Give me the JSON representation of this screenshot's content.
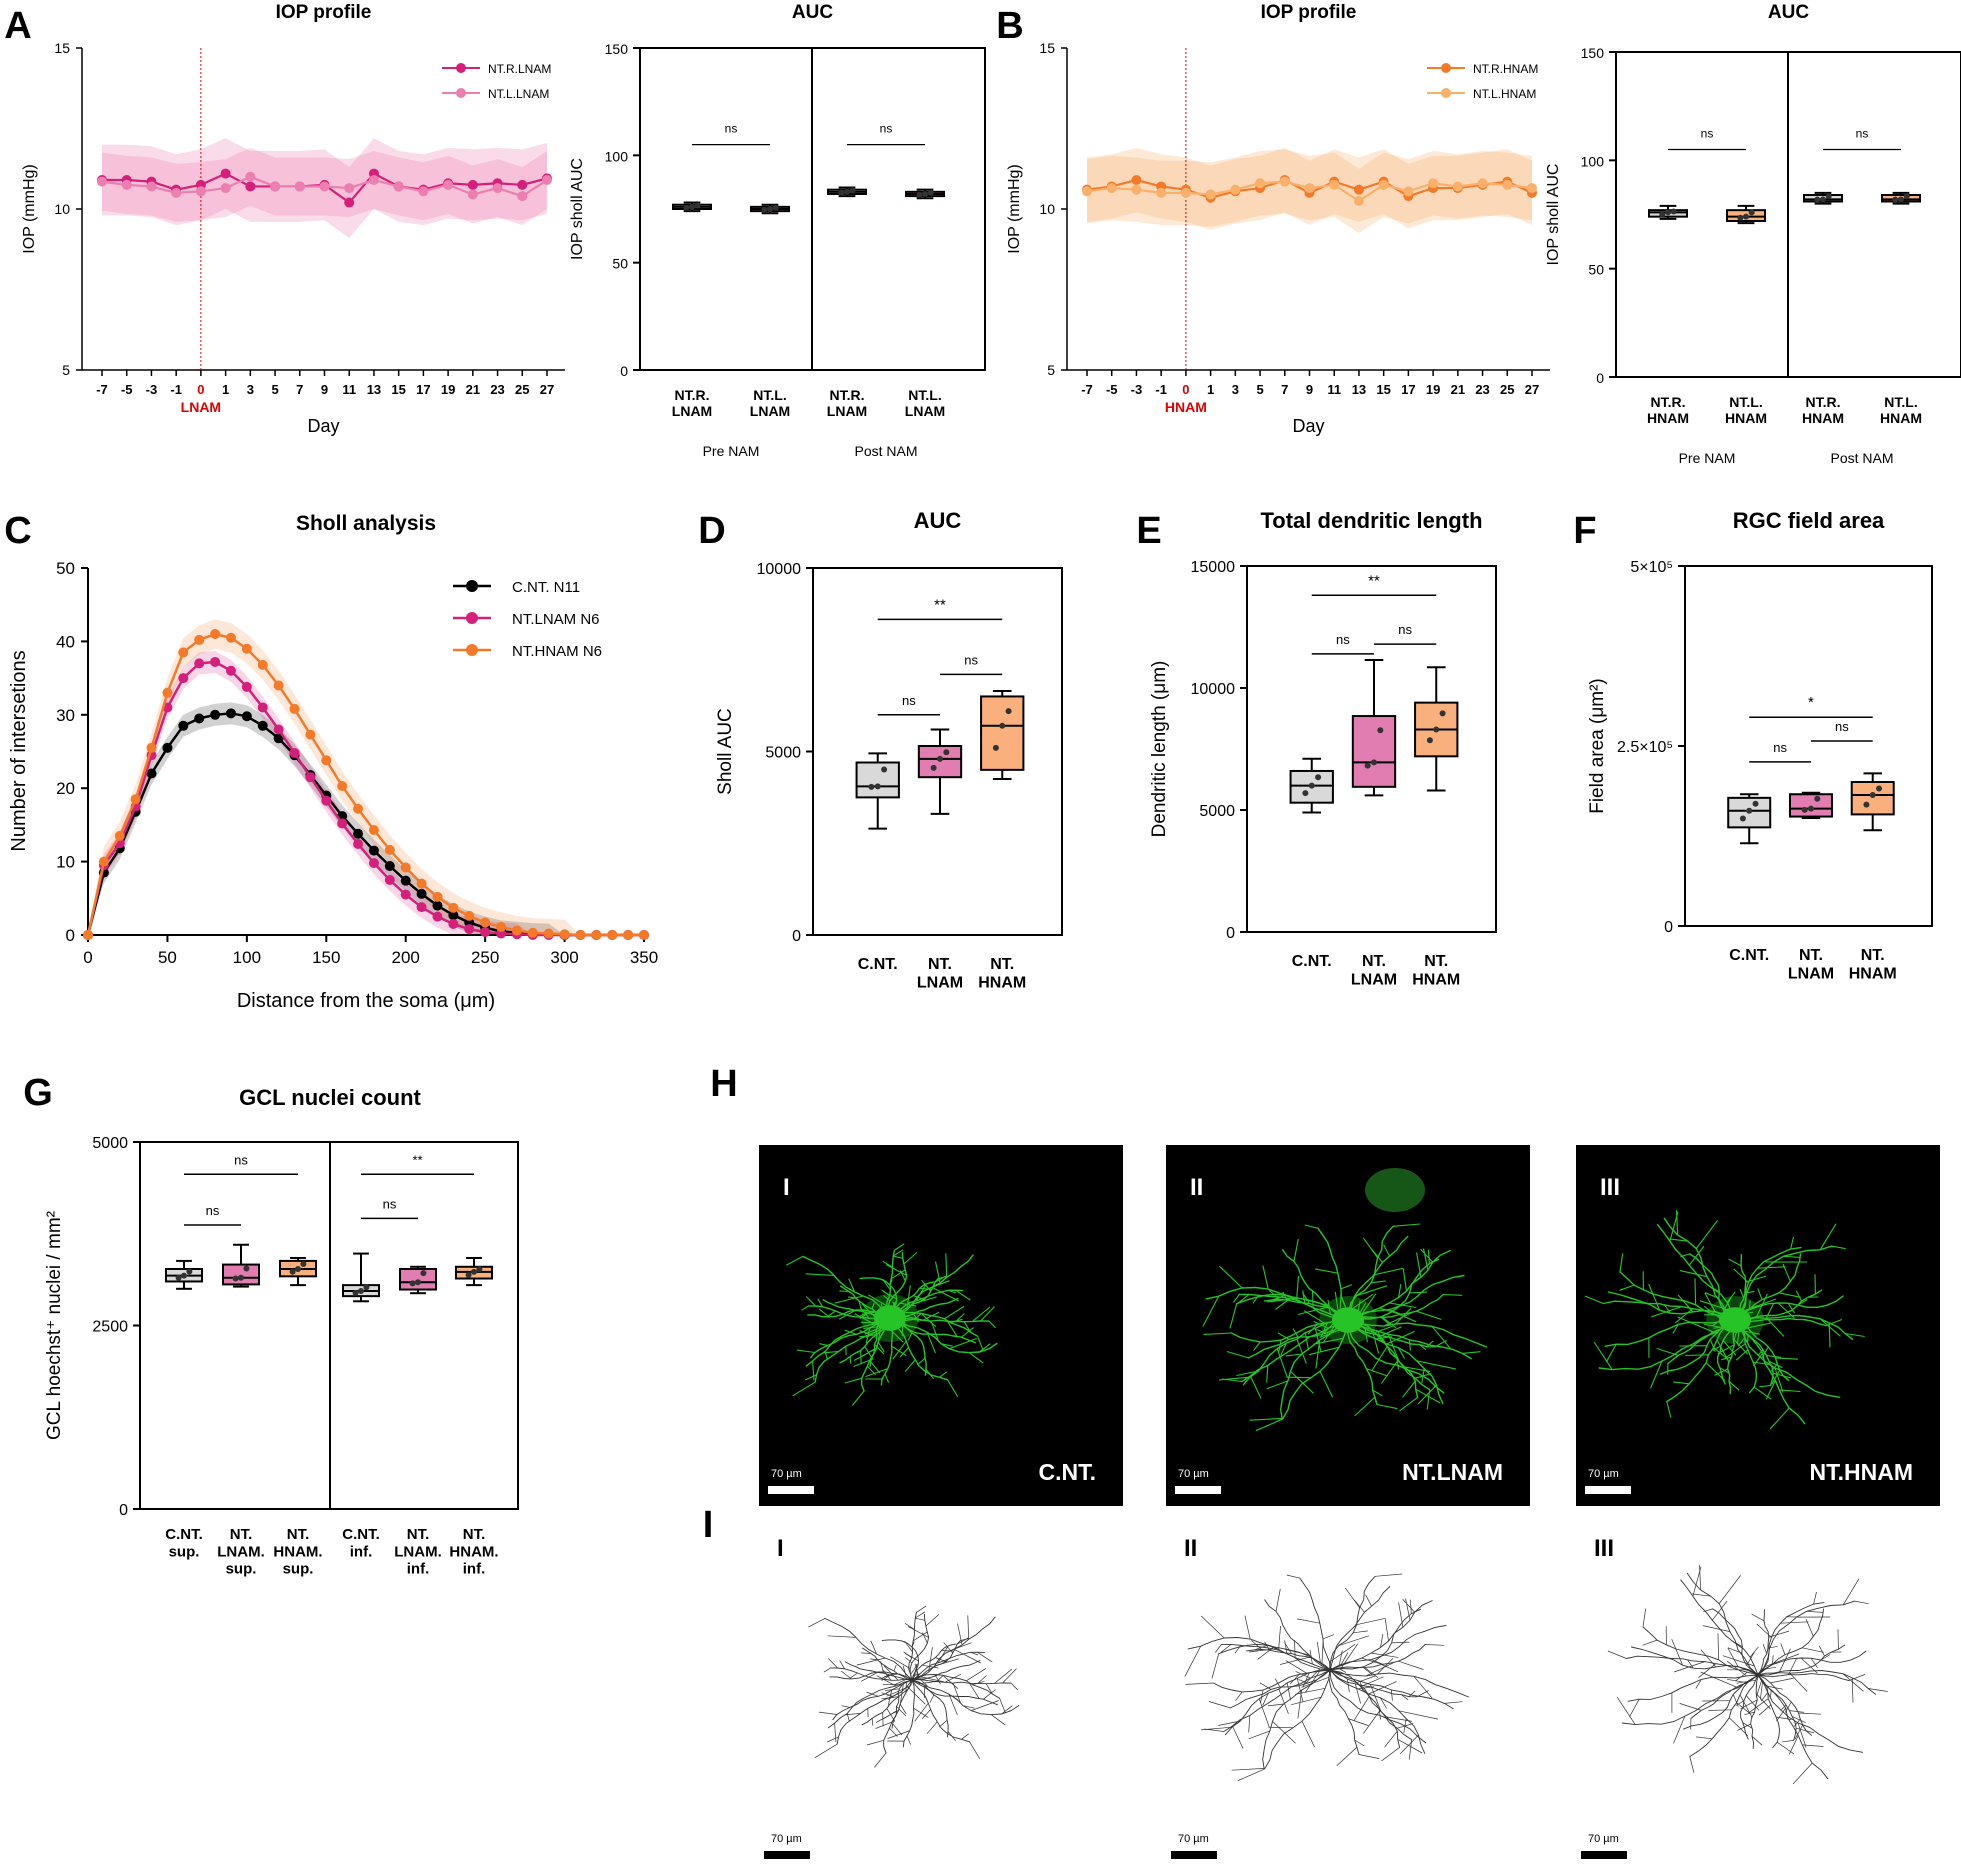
{
  "panels": {
    "A": {
      "letter": "A",
      "iop": {
        "title": "IOP profile",
        "ylabel": "IOP (mmHg)",
        "xlabel": "Day",
        "yticks": [
          "5",
          "10",
          "15"
        ],
        "xticks": [
          "-7",
          "-5",
          "-3",
          "-1",
          "0",
          "1",
          "3",
          "5",
          "7",
          "9",
          "11",
          "13",
          "15",
          "17",
          "19",
          "21",
          "23",
          "25",
          "27"
        ],
        "event_label": "LNAM",
        "legend": [
          "NT.R.LNAM",
          "NT.L.LNAM"
        ]
      },
      "auc": {
        "title": "AUC",
        "ylabel": "IOP sholl AUC",
        "yticks": [
          "0",
          "50",
          "100",
          "150"
        ],
        "groups": [
          "NT.R.\nLNAM",
          "NT.L.\nLNAM",
          "NT.R.\nLNAM",
          "NT.L.\nLNAM"
        ],
        "sections": [
          "Pre NAM",
          "Post NAM"
        ],
        "sig": [
          "ns",
          "ns"
        ]
      }
    },
    "B": {
      "letter": "B",
      "iop": {
        "title": "IOP profile",
        "ylabel": "IOP (mmHg)",
        "xlabel": "Day",
        "yticks": [
          "5",
          "10",
          "15"
        ],
        "xticks": [
          "-7",
          "-5",
          "-3",
          "-1",
          "0",
          "1",
          "3",
          "5",
          "7",
          "9",
          "11",
          "13",
          "15",
          "17",
          "19",
          "21",
          "23",
          "25",
          "27"
        ],
        "event_label": "HNAM",
        "legend": [
          "NT.R.HNAM",
          "NT.L.HNAM"
        ]
      },
      "auc": {
        "title": "AUC",
        "ylabel": "IOP sholl AUC",
        "yticks": [
          "0",
          "50",
          "100",
          "150"
        ],
        "groups": [
          "NT.R.\nHNAM",
          "NT.L.\nHNAM",
          "NT.R.\nHNAM",
          "NT.L.\nHNAM"
        ],
        "sections": [
          "Pre NAM",
          "Post NAM"
        ],
        "sig": [
          "ns",
          "ns"
        ]
      }
    },
    "C": {
      "letter": "C",
      "title": "Sholl analysis",
      "xlabel": "Distance from the soma (μm)",
      "ylabel": "Number of intersetions",
      "xticks": [
        "0",
        "50",
        "100",
        "150",
        "200",
        "250",
        "300",
        "350"
      ],
      "yticks": [
        "0",
        "10",
        "20",
        "30",
        "40",
        "50"
      ],
      "legend": [
        "C.NT. N11",
        "NT.LNAM N6",
        "NT.HNAM N6"
      ]
    },
    "D": {
      "letter": "D",
      "title": "AUC",
      "ylabel": "Sholl AUC",
      "yticks": [
        "0",
        "5000",
        "10000"
      ],
      "groups": [
        "C.NT.",
        "NT.\nLNAM",
        "NT.\nHNAM"
      ],
      "sig": [
        "**",
        "ns",
        "ns"
      ]
    },
    "E": {
      "letter": "E",
      "title": "Total dendritic length",
      "ylabel": "Dendritic length (μm)",
      "yticks": [
        "0",
        "5000",
        "10000",
        "15000"
      ],
      "groups": [
        "C.NT.",
        "NT.\nLNAM",
        "NT.\nHNAM"
      ],
      "sig": [
        "**",
        "ns",
        "ns"
      ]
    },
    "F": {
      "letter": "F",
      "title": "RGC field area",
      "ylabel": "Field area (μm²)",
      "yticks": [
        "0",
        "2.5×10⁵",
        "5×10⁵"
      ],
      "groups": [
        "C.NT.",
        "NT.\nLNAM",
        "NT.\nHNAM"
      ],
      "sig": [
        "*",
        "ns",
        "ns"
      ]
    },
    "G": {
      "letter": "G",
      "title": "GCL nuclei count",
      "ylabel": "GCL hoechst⁺ nuclei / mm²",
      "yticks": [
        "0",
        "2500",
        "5000"
      ],
      "groups": [
        "C.NT.\nsup.",
        "NT.\nLNAM.\nsup.",
        "NT.\nHNAM.\nsup.",
        "C.NT.\ninf.",
        "NT.\nLNAM.\ninf.",
        "NT.\nHNAM.\ninf."
      ],
      "sig": [
        "ns",
        "ns",
        "**",
        "ns"
      ]
    },
    "H": {
      "letter": "H",
      "images": [
        {
          "roman": "I",
          "label": "C.NT.",
          "scale": "70 µm"
        },
        {
          "roman": "II",
          "label": "NT.LNAM",
          "scale": "70 µm"
        },
        {
          "roman": "III",
          "label": "NT.HNAM",
          "scale": "70 µm"
        }
      ]
    },
    "I": {
      "letter": "I",
      "images": [
        {
          "roman": "I",
          "scale": "70 µm"
        },
        {
          "roman": "II",
          "scale": "70 µm"
        },
        {
          "roman": "III",
          "scale": "70 µm"
        }
      ]
    }
  },
  "colors": {
    "cnt": "#000000",
    "lnam": "#d4207a",
    "lnam_light": "#ec7fb0",
    "hnam": "#f47a2a",
    "hnam_light": "#f9b06a",
    "lnam_box": "#e27db1",
    "hnam_box": "#f9b07d",
    "cnt_box": "#d9d9d9",
    "event": "#e00000"
  },
  "chart_data": [
    {
      "panel": "A",
      "type": "line",
      "title": "IOP profile",
      "xlabel": "Day",
      "ylabel": "IOP (mmHg)",
      "ylim": [
        5,
        15
      ],
      "x": [
        -7,
        -5,
        -3,
        -1,
        0,
        1,
        3,
        5,
        7,
        9,
        11,
        13,
        15,
        17,
        19,
        21,
        23,
        25,
        27
      ],
      "series": [
        {
          "name": "NT.R.LNAM",
          "values": [
            10.9,
            10.9,
            10.85,
            10.6,
            10.75,
            11.1,
            10.7,
            10.7,
            10.7,
            10.75,
            10.2,
            11.1,
            10.7,
            10.6,
            10.8,
            10.75,
            10.8,
            10.75,
            10.95
          ],
          "sd": 1.1
        },
        {
          "name": "NT.L.LNAM",
          "values": [
            10.85,
            10.75,
            10.7,
            10.5,
            10.55,
            10.65,
            11.0,
            10.7,
            10.7,
            10.7,
            10.65,
            10.9,
            10.7,
            10.55,
            10.75,
            10.45,
            10.65,
            10.4,
            10.9
          ],
          "sd": 0.9
        }
      ]
    },
    {
      "panel": "A",
      "type": "box",
      "title": "AUC",
      "ylabel": "IOP sholl AUC",
      "ylim": [
        0,
        150
      ],
      "categories": [
        "NT.R. LNAM (Pre NAM)",
        "NT.L. LNAM (Pre NAM)",
        "NT.R. LNAM (Post NAM)",
        "NT.L. LNAM (Post NAM)"
      ],
      "boxes": [
        {
          "min": 74,
          "q1": 75,
          "median": 76,
          "q3": 77,
          "max": 78
        },
        {
          "min": 73,
          "q1": 74,
          "median": 75,
          "q3": 76,
          "max": 77
        },
        {
          "min": 81,
          "q1": 82,
          "median": 83,
          "q3": 84,
          "max": 85
        },
        {
          "min": 80,
          "q1": 81,
          "median": 82,
          "q3": 83,
          "max": 84
        }
      ]
    },
    {
      "panel": "B",
      "type": "line",
      "title": "IOP profile",
      "xlabel": "Day",
      "ylabel": "IOP (mmHg)",
      "ylim": [
        5,
        15
      ],
      "x": [
        -7,
        -5,
        -3,
        -1,
        0,
        1,
        3,
        5,
        7,
        9,
        11,
        13,
        15,
        17,
        19,
        21,
        23,
        25,
        27
      ],
      "series": [
        {
          "name": "NT.R.HNAM",
          "values": [
            10.6,
            10.7,
            10.9,
            10.7,
            10.6,
            10.35,
            10.55,
            10.65,
            10.9,
            10.5,
            10.85,
            10.6,
            10.85,
            10.4,
            10.65,
            10.65,
            10.75,
            10.85,
            10.5
          ],
          "sd": 1.0
        },
        {
          "name": "NT.L.HNAM",
          "values": [
            10.55,
            10.65,
            10.6,
            10.5,
            10.5,
            10.45,
            10.6,
            10.8,
            10.85,
            10.65,
            10.75,
            10.25,
            10.75,
            10.55,
            10.8,
            10.7,
            10.8,
            10.75,
            10.65
          ],
          "sd": 1.0
        }
      ]
    },
    {
      "panel": "B",
      "type": "box",
      "title": "AUC",
      "ylabel": "IOP sholl AUC",
      "ylim": [
        0,
        150
      ],
      "categories": [
        "NT.R. HNAM (Pre NAM)",
        "NT.L. HNAM (Pre NAM)",
        "NT.R. HNAM (Post NAM)",
        "NT.L. HNAM (Post NAM)"
      ],
      "boxes": [
        {
          "min": 73,
          "q1": 74,
          "median": 76,
          "q3": 77,
          "max": 79
        },
        {
          "min": 71,
          "q1": 72,
          "median": 74,
          "q3": 77,
          "max": 79
        },
        {
          "min": 80,
          "q1": 81,
          "median": 82,
          "q3": 84,
          "max": 85
        },
        {
          "min": 80,
          "q1": 81,
          "median": 82,
          "q3": 84,
          "max": 85
        }
      ]
    },
    {
      "panel": "C",
      "type": "line",
      "title": "Sholl analysis",
      "xlabel": "Distance from the soma (μm)",
      "ylabel": "Number of intersetions",
      "xlim": [
        0,
        350
      ],
      "ylim": [
        0,
        50
      ],
      "x": [
        0,
        10,
        20,
        30,
        40,
        50,
        60,
        70,
        80,
        90,
        100,
        110,
        120,
        130,
        140,
        150,
        160,
        170,
        180,
        190,
        200,
        210,
        220,
        230,
        240,
        250,
        260,
        270,
        280,
        290,
        300,
        310,
        320,
        330,
        340,
        350
      ],
      "series": [
        {
          "name": "C.NT. N11",
          "values": [
            0,
            8.5,
            11.8,
            16.8,
            22.0,
            25.5,
            28.5,
            29.5,
            30.0,
            30.2,
            29.8,
            28.5,
            26.8,
            24.5,
            21.8,
            19.0,
            16.2,
            13.8,
            11.5,
            9.4,
            7.4,
            5.6,
            4.0,
            2.7,
            1.7,
            1.0,
            0.5,
            0.3,
            0.1,
            0.05,
            0,
            0,
            0,
            0,
            0,
            0
          ],
          "sd": 1.5
        },
        {
          "name": "NT.LNAM N6",
          "values": [
            0,
            9.5,
            12.5,
            17.5,
            24.5,
            31.0,
            35.0,
            37.0,
            37.2,
            36.0,
            33.8,
            31.0,
            28.0,
            24.8,
            21.5,
            18.3,
            15.2,
            12.4,
            9.8,
            7.5,
            5.5,
            3.8,
            2.5,
            1.5,
            0.8,
            0.4,
            0.2,
            0.1,
            0,
            0,
            0,
            0,
            0,
            0,
            0,
            0
          ],
          "sd": 1.5
        },
        {
          "name": "NT.HNAM N6",
          "values": [
            0,
            10.0,
            13.5,
            18.5,
            25.5,
            33.0,
            38.5,
            40.2,
            41.0,
            40.5,
            39.0,
            36.8,
            34.0,
            30.8,
            27.3,
            23.8,
            20.3,
            17.2,
            14.3,
            11.6,
            9.2,
            7.0,
            5.2,
            3.7,
            2.6,
            1.7,
            1.1,
            0.6,
            0.3,
            0.2,
            0.1,
            0,
            0,
            0,
            0,
            0
          ],
          "sd": 2.0
        }
      ]
    },
    {
      "panel": "D",
      "type": "box",
      "title": "AUC",
      "ylabel": "Sholl AUC",
      "ylim": [
        0,
        10000
      ],
      "categories": [
        "C.NT.",
        "NT. LNAM",
        "NT. HNAM"
      ],
      "boxes": [
        {
          "min": 2900,
          "q1": 3750,
          "median": 4050,
          "q3": 4700,
          "max": 4950
        },
        {
          "min": 3300,
          "q1": 4300,
          "median": 4800,
          "q3": 5150,
          "max": 5600
        },
        {
          "min": 4250,
          "q1": 4500,
          "median": 5700,
          "q3": 6500,
          "max": 6650
        }
      ]
    },
    {
      "panel": "E",
      "type": "box",
      "title": "Total dendritic length",
      "ylabel": "Dendritic length (μm)",
      "ylim": [
        0,
        15000
      ],
      "categories": [
        "C.NT.",
        "NT. LNAM",
        "NT. HNAM"
      ],
      "boxes": [
        {
          "min": 4900,
          "q1": 5300,
          "median": 6000,
          "q3": 6600,
          "max": 7100
        },
        {
          "min": 5600,
          "q1": 5950,
          "median": 6950,
          "q3": 8850,
          "max": 11150
        },
        {
          "min": 5800,
          "q1": 7200,
          "median": 8300,
          "q3": 9400,
          "max": 10850
        }
      ]
    },
    {
      "panel": "F",
      "type": "box",
      "title": "RGC field area",
      "ylabel": "Field area (μm²)",
      "ylim": [
        0,
        500000
      ],
      "categories": [
        "C.NT.",
        "NT. LNAM",
        "NT. HNAM"
      ],
      "boxes": [
        {
          "min": 115000,
          "q1": 137000,
          "median": 160000,
          "q3": 178000,
          "max": 183000
        },
        {
          "min": 150000,
          "q1": 152000,
          "median": 163000,
          "q3": 183000,
          "max": 185000
        },
        {
          "min": 133000,
          "q1": 155000,
          "median": 182000,
          "q3": 200000,
          "max": 212000
        }
      ]
    },
    {
      "panel": "G",
      "type": "box",
      "title": "GCL nuclei count",
      "ylabel": "GCL hoechst⁺ nuclei / mm²",
      "ylim": [
        0,
        5000
      ],
      "categories": [
        "C.NT. sup.",
        "NT. LNAM. sup.",
        "NT. HNAM. sup.",
        "C.NT. inf.",
        "NT. LNAM. inf.",
        "NT. HNAM. inf."
      ],
      "boxes": [
        {
          "min": 3000,
          "q1": 3100,
          "median": 3180,
          "q3": 3270,
          "max": 3380
        },
        {
          "min": 3030,
          "q1": 3060,
          "median": 3150,
          "q3": 3330,
          "max": 3600
        },
        {
          "min": 3050,
          "q1": 3170,
          "median": 3270,
          "q3": 3380,
          "max": 3420
        },
        {
          "min": 2830,
          "q1": 2900,
          "median": 2970,
          "q3": 3050,
          "max": 3480
        },
        {
          "min": 2940,
          "q1": 2990,
          "median": 3090,
          "q3": 3270,
          "max": 3300
        },
        {
          "min": 3050,
          "q1": 3140,
          "median": 3230,
          "q3": 3300,
          "max": 3420
        }
      ]
    }
  ]
}
